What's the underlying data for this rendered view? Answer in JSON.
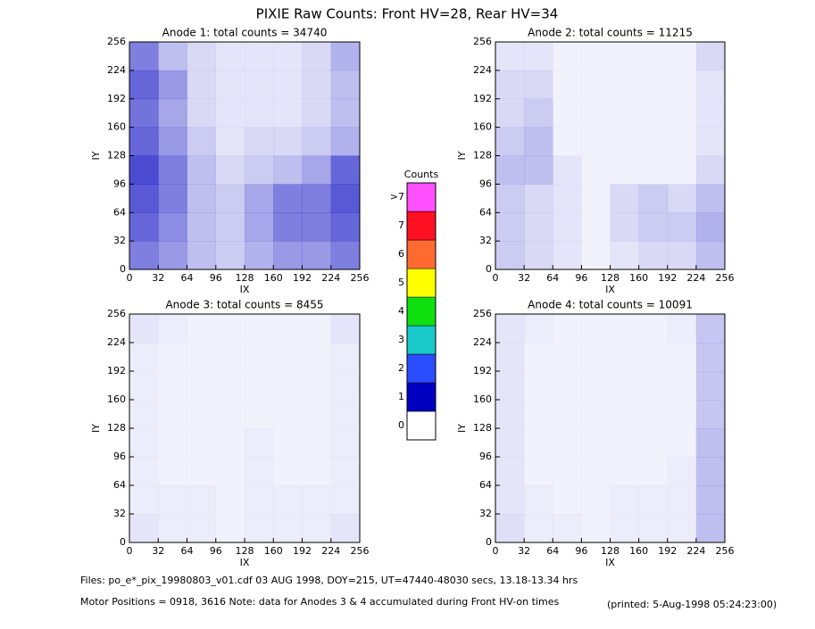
{
  "title": "PIXIE Raw Counts:  Front HV=28, Rear HV=34",
  "footer": [
    "Files: po_e*_pix_19980803_v01.cdf    03 AUG 1998, DOY=215, UT=47440-48030 secs, 13.18-13.34 hrs",
    "Motor Positions = 0918, 3616    Note: data for Anodes 3 & 4 accumulated during Front HV-on times",
    "(printed:  5-Aug-1998 05:24:23:00)"
  ],
  "chart_data": [
    {
      "type": "heatmap",
      "title": "Anode 1: total counts = 34740",
      "x_label": "IX",
      "y_label": "IY",
      "color": "#0000c0",
      "xlim": [
        0,
        256
      ],
      "ylim": [
        0,
        256
      ],
      "xticks": [
        0,
        32,
        64,
        96,
        128,
        160,
        192,
        224,
        256
      ],
      "yticks": [
        0,
        32,
        64,
        96,
        128,
        160,
        192,
        224,
        256
      ],
      "z": [
        [
          1.0,
          0.8,
          0.5,
          0.4,
          0.6,
          0.8,
          0.8,
          1.0
        ],
        [
          1.2,
          0.9,
          0.5,
          0.4,
          0.7,
          1.0,
          1.0,
          1.2
        ],
        [
          1.3,
          1.0,
          0.5,
          0.4,
          0.7,
          1.0,
          1.0,
          1.3
        ],
        [
          1.4,
          1.0,
          0.5,
          0.3,
          0.4,
          0.5,
          0.7,
          1.2
        ],
        [
          1.2,
          0.8,
          0.4,
          0.2,
          0.3,
          0.3,
          0.4,
          0.6
        ],
        [
          1.1,
          0.7,
          0.3,
          0.2,
          0.2,
          0.2,
          0.3,
          0.5
        ],
        [
          1.2,
          0.8,
          0.3,
          0.2,
          0.2,
          0.2,
          0.3,
          0.5
        ],
        [
          1.0,
          0.5,
          0.3,
          0.2,
          0.2,
          0.2,
          0.3,
          0.6
        ]
      ]
    },
    {
      "type": "heatmap",
      "title": "Anode 2: total counts = 11215",
      "x_label": "IX",
      "y_label": "IY",
      "color": "#0000c0",
      "xlim": [
        0,
        256
      ],
      "ylim": [
        0,
        256
      ],
      "xticks": [
        0,
        32,
        64,
        96,
        128,
        160,
        192,
        224,
        256
      ],
      "yticks": [
        0,
        32,
        64,
        96,
        128,
        160,
        192,
        224,
        256
      ],
      "z": [
        [
          0.4,
          0.3,
          0.2,
          0.1,
          0.2,
          0.3,
          0.3,
          0.5
        ],
        [
          0.4,
          0.3,
          0.2,
          0.1,
          0.3,
          0.4,
          0.4,
          0.6
        ],
        [
          0.4,
          0.3,
          0.2,
          0.1,
          0.3,
          0.4,
          0.3,
          0.5
        ],
        [
          0.5,
          0.5,
          0.2,
          0.1,
          0.1,
          0.1,
          0.1,
          0.3
        ],
        [
          0.4,
          0.5,
          0.1,
          0.1,
          0.1,
          0.1,
          0.1,
          0.2
        ],
        [
          0.3,
          0.4,
          0.1,
          0.1,
          0.1,
          0.1,
          0.1,
          0.2
        ],
        [
          0.3,
          0.3,
          0.1,
          0.1,
          0.1,
          0.1,
          0.1,
          0.2
        ],
        [
          0.2,
          0.2,
          0.1,
          0.1,
          0.1,
          0.1,
          0.1,
          0.3
        ]
      ]
    },
    {
      "type": "heatmap",
      "title": "Anode 3: total counts = 8455",
      "x_label": "IX",
      "y_label": "IY",
      "color": "#0000c0",
      "xlim": [
        0,
        256
      ],
      "ylim": [
        0,
        256
      ],
      "xticks": [
        0,
        32,
        64,
        96,
        128,
        160,
        192,
        224,
        256
      ],
      "yticks": [
        0,
        32,
        64,
        96,
        128,
        160,
        192,
        224,
        256
      ],
      "z": [
        [
          0.2,
          0.15,
          0.15,
          0.1,
          0.15,
          0.15,
          0.15,
          0.2
        ],
        [
          0.15,
          0.15,
          0.15,
          0.1,
          0.15,
          0.15,
          0.15,
          0.15
        ],
        [
          0.15,
          0.1,
          0.1,
          0.1,
          0.15,
          0.1,
          0.1,
          0.15
        ],
        [
          0.15,
          0.1,
          0.1,
          0.1,
          0.15,
          0.1,
          0.1,
          0.15
        ],
        [
          0.15,
          0.1,
          0.1,
          0.1,
          0.1,
          0.1,
          0.1,
          0.15
        ],
        [
          0.15,
          0.1,
          0.1,
          0.1,
          0.1,
          0.1,
          0.1,
          0.15
        ],
        [
          0.15,
          0.1,
          0.1,
          0.1,
          0.1,
          0.1,
          0.1,
          0.15
        ],
        [
          0.2,
          0.15,
          0.1,
          0.1,
          0.1,
          0.1,
          0.1,
          0.2
        ]
      ]
    },
    {
      "type": "heatmap",
      "title": "Anode 4: total counts = 10091",
      "x_label": "IX",
      "y_label": "IY",
      "color": "#0000c0",
      "xlim": [
        0,
        256
      ],
      "ylim": [
        0,
        256
      ],
      "xticks": [
        0,
        32,
        64,
        96,
        128,
        160,
        192,
        224,
        256
      ],
      "yticks": [
        0,
        32,
        64,
        96,
        128,
        160,
        192,
        224,
        256
      ],
      "z": [
        [
          0.25,
          0.15,
          0.15,
          0.1,
          0.15,
          0.15,
          0.15,
          0.5
        ],
        [
          0.2,
          0.15,
          0.1,
          0.1,
          0.15,
          0.15,
          0.15,
          0.5
        ],
        [
          0.2,
          0.1,
          0.1,
          0.1,
          0.1,
          0.1,
          0.15,
          0.5
        ],
        [
          0.2,
          0.1,
          0.1,
          0.1,
          0.1,
          0.1,
          0.1,
          0.5
        ],
        [
          0.2,
          0.1,
          0.1,
          0.1,
          0.1,
          0.1,
          0.1,
          0.45
        ],
        [
          0.2,
          0.1,
          0.1,
          0.1,
          0.1,
          0.1,
          0.1,
          0.45
        ],
        [
          0.2,
          0.1,
          0.1,
          0.1,
          0.1,
          0.1,
          0.1,
          0.45
        ],
        [
          0.2,
          0.15,
          0.1,
          0.1,
          0.1,
          0.1,
          0.15,
          0.45
        ]
      ]
    },
    {
      "type": "colorbar",
      "title": "Counts",
      "categories": [
        "0",
        "1",
        "2",
        "3",
        "4",
        "5",
        "6",
        "7",
        ">7"
      ],
      "colors": [
        "#ffffff",
        "#0000c0",
        "#2a4dff",
        "#19c8c8",
        "#10e010",
        "#ffff00",
        "#ff6a30",
        "#ff1020",
        "#ff50ff"
      ]
    }
  ]
}
